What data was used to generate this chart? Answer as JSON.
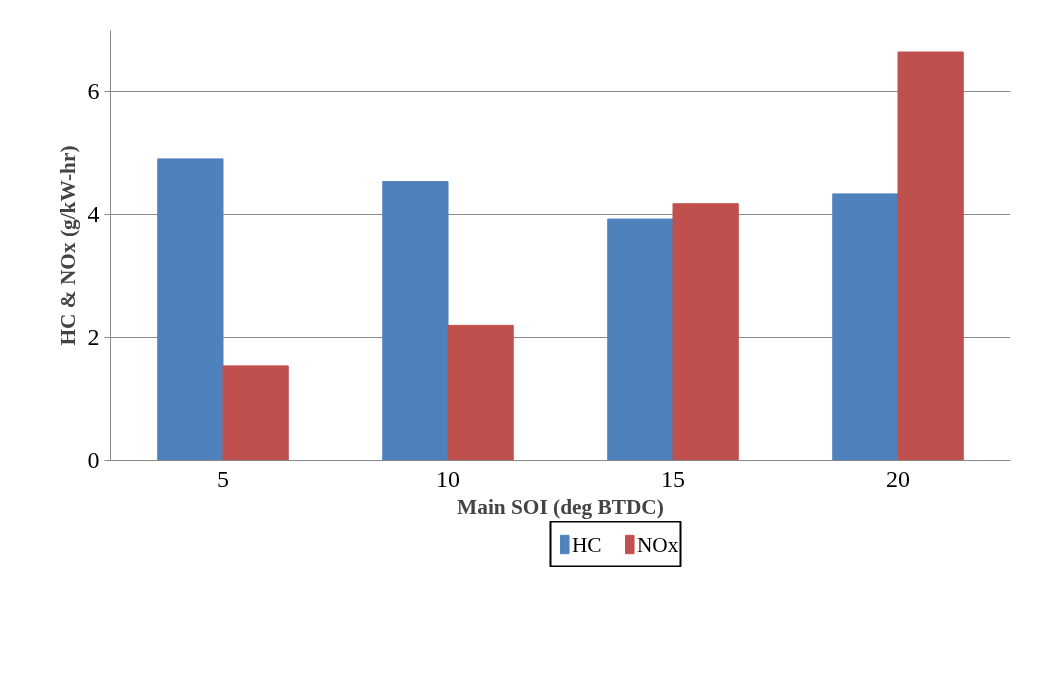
{
  "chart_data": {
    "type": "bar",
    "xlabel": "Main SOI (deg BTDC)",
    "ylabel": "HC & NOx (g/kW-hr)",
    "categories": [
      "5",
      "10",
      "15",
      "20"
    ],
    "series": [
      {
        "name": "HC",
        "color": "#4f81bd",
        "values": [
          4.91,
          4.54,
          3.93,
          4.34
        ]
      },
      {
        "name": "NOx",
        "color": "#c0504d",
        "values": [
          1.54,
          2.2,
          4.18,
          6.65
        ]
      }
    ],
    "ylim": [
      0,
      7
    ],
    "yticks": [
      0,
      2,
      4,
      6
    ],
    "grid": "y",
    "legend": "bottom"
  }
}
